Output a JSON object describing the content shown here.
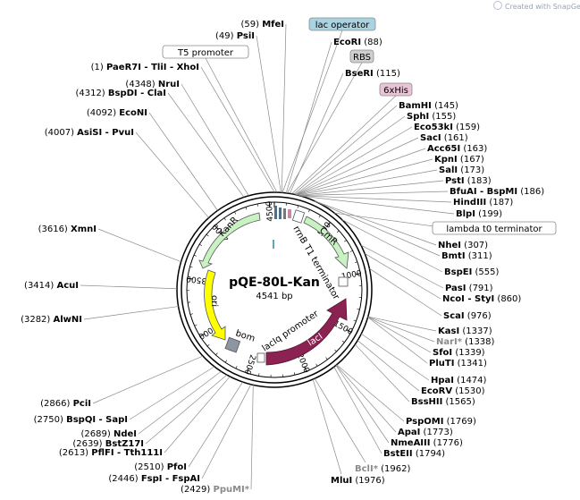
{
  "watermark": "Created with SnapGene®",
  "plasmid": {
    "name": "pQE-80L-Kan",
    "size": "4541 bp"
  },
  "ring_ticks": [
    "500",
    "1000",
    "1500",
    "2000",
    "2500",
    "3000",
    "3500",
    "4000",
    "4500"
  ],
  "features": {
    "kanr": "KanR",
    "cmr": "CmR",
    "ori": "ori",
    "laci": "lacI",
    "bom": "bom",
    "rrnb": "rrnB T1 terminator",
    "laciq": "lacIq promoter"
  },
  "boxed_labels": [
    {
      "id": "lac-operator",
      "text": "lac operator",
      "fill": "#a9d3e0"
    },
    {
      "id": "t5-promoter",
      "text": "T5 promoter",
      "fill": "#ffffff"
    },
    {
      "id": "rbs",
      "text": "RBS",
      "fill": "#cfcfcf"
    },
    {
      "id": "6xhis",
      "text": "6xHis",
      "fill": "#e9c4d6"
    },
    {
      "id": "lambda-t0",
      "text": "lambda t0 terminator",
      "fill": "#ffffff"
    }
  ],
  "sites_left": [
    {
      "pos": "(59)",
      "name": "MfeI"
    },
    {
      "pos": "(49)",
      "name": "PsiI"
    },
    {
      "pos": "(1)",
      "name": "PaeR7I - TliI - XhoI"
    },
    {
      "pos": "(4348)",
      "name": "NruI"
    },
    {
      "pos": "(4312)",
      "name": "BspDI - ClaI"
    },
    {
      "pos": "(4092)",
      "name": "EcoNI"
    },
    {
      "pos": "(4007)",
      "name": "AsiSI - PvuI"
    },
    {
      "pos": "(3616)",
      "name": "XmnI"
    },
    {
      "pos": "(3414)",
      "name": "AcuI"
    },
    {
      "pos": "(3282)",
      "name": "AlwNI"
    },
    {
      "pos": "(2866)",
      "name": "PciI"
    },
    {
      "pos": "(2750)",
      "name": "BspQI - SapI"
    },
    {
      "pos": "(2689)",
      "name": "NdeI"
    },
    {
      "pos": "(2639)",
      "name": "BstZ17I"
    },
    {
      "pos": "(2613)",
      "name": "PflFI - Tth111I"
    },
    {
      "pos": "(2510)",
      "name": "PfoI"
    },
    {
      "pos": "(2446)",
      "name": "FspI - FspAI"
    },
    {
      "pos": "(2429)",
      "name": "PpuMI*"
    }
  ],
  "sites_right": [
    {
      "name": "EcoRI",
      "pos": "(88)"
    },
    {
      "name": "BseRI",
      "pos": "(115)"
    },
    {
      "name": "BamHI",
      "pos": "(145)"
    },
    {
      "name": "SphI",
      "pos": "(155)"
    },
    {
      "name": "Eco53kI",
      "pos": "(159)"
    },
    {
      "name": "SacI",
      "pos": "(161)"
    },
    {
      "name": "Acc65I",
      "pos": "(163)"
    },
    {
      "name": "KpnI",
      "pos": "(167)"
    },
    {
      "name": "SalI",
      "pos": "(173)"
    },
    {
      "name": "PstI",
      "pos": "(183)"
    },
    {
      "name": "BfuAI - BspMI",
      "pos": "(186)"
    },
    {
      "name": "HindIII",
      "pos": "(187)"
    },
    {
      "name": "BlpI",
      "pos": "(199)"
    },
    {
      "name": "NheI",
      "pos": "(307)"
    },
    {
      "name": "BmtI",
      "pos": "(311)"
    },
    {
      "name": "BspEI",
      "pos": "(555)"
    },
    {
      "name": "PasI",
      "pos": "(791)"
    },
    {
      "name": "NcoI - StyI",
      "pos": "(860)"
    },
    {
      "name": "ScaI",
      "pos": "(976)"
    },
    {
      "name": "KasI",
      "pos": "(1337)"
    },
    {
      "name": "NarI*",
      "pos": "(1338)"
    },
    {
      "name": "SfoI",
      "pos": "(1339)"
    },
    {
      "name": "PluTI",
      "pos": "(1341)"
    },
    {
      "name": "HpaI",
      "pos": "(1474)"
    },
    {
      "name": "EcoRV",
      "pos": "(1530)"
    },
    {
      "name": "BssHII",
      "pos": "(1565)"
    },
    {
      "name": "PspOMI",
      "pos": "(1769)"
    },
    {
      "name": "ApaI",
      "pos": "(1773)"
    },
    {
      "name": "NmeAIII",
      "pos": "(1776)"
    },
    {
      "name": "BstEII",
      "pos": "(1794)"
    }
  ],
  "sites_bottom": [
    {
      "name": "BclI*",
      "pos": "(1962)"
    },
    {
      "name": "MluI",
      "pos": "(1976)"
    }
  ],
  "colors": {
    "kanr": "#c9f2c3",
    "cmr": "#c9f2c3",
    "ori": "#ffff00",
    "laci": "#8b2252",
    "bom": "#8c95a1"
  }
}
